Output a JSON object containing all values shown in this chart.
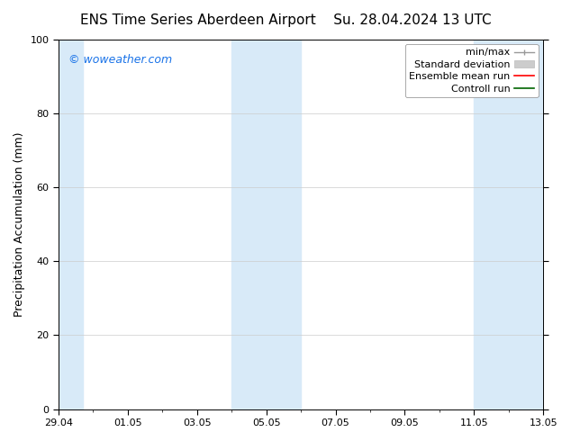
{
  "title_left": "ENS Time Series Aberdeen Airport",
  "title_right": "Su. 28.04.2024 13 UTC",
  "ylabel": "Precipitation Accumulation (mm)",
  "ylim": [
    0,
    100
  ],
  "yticks": [
    0,
    20,
    40,
    60,
    80,
    100
  ],
  "xtick_labels": [
    "29.04",
    "01.05",
    "03.05",
    "05.05",
    "07.05",
    "09.05",
    "11.05",
    "13.05"
  ],
  "background_color": "#ffffff",
  "plot_bg_color": "#ffffff",
  "shaded_color": "#d8eaf8",
  "legend_entries": [
    {
      "label": "min/max",
      "color": "#aaaaaa",
      "type": "line_with_caps"
    },
    {
      "label": "Standard deviation",
      "color": "#ccddee",
      "type": "fill"
    },
    {
      "label": "Ensemble mean run",
      "color": "#ff0000",
      "type": "line"
    },
    {
      "label": "Controll run",
      "color": "#008000",
      "type": "line"
    }
  ],
  "watermark_text": "© woweather.com",
  "watermark_color": "#1a73e8",
  "title_fontsize": 11,
  "tick_fontsize": 8,
  "ylabel_fontsize": 9,
  "legend_fontsize": 8
}
